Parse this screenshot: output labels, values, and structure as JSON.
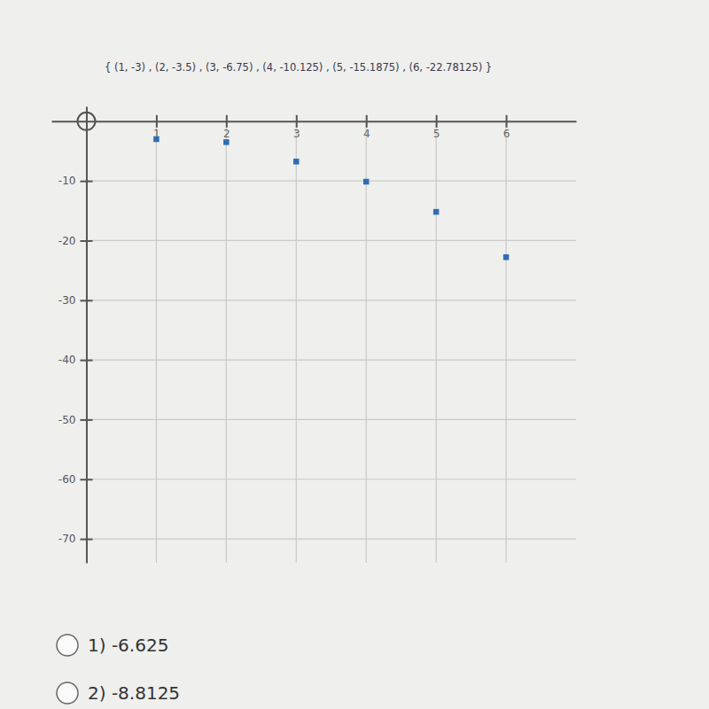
{
  "chart_data": {
    "type": "scatter",
    "title": "{ (1, -3) , (2, -3.5) , (3, -6.75) , (4, -10.125) , (5, -15.1875) , (6, -22.78125) }",
    "x": [
      1,
      2,
      3,
      4,
      5,
      6
    ],
    "values": [
      -3,
      -3.5,
      -6.75,
      -10.125,
      -15.1875,
      -22.78125
    ],
    "color": "#2e6db4",
    "marker": "square",
    "xlim": [
      -0.5,
      7
    ],
    "xticks": [
      1,
      2,
      3,
      4,
      5,
      6
    ],
    "ylim": [
      -74,
      2.5
    ],
    "yticks": [
      -10,
      -20,
      -30,
      -40,
      -50,
      -60,
      -70
    ],
    "grid": true
  },
  "choices": [
    "1) -6.625",
    "2) -8.8125"
  ]
}
